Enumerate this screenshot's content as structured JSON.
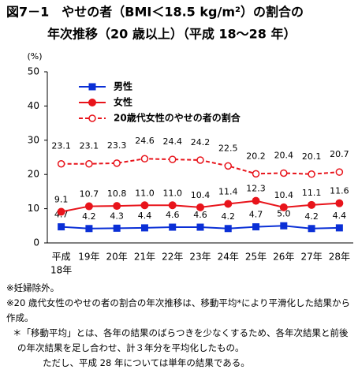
{
  "chart_data": {
    "type": "line",
    "title": "図7－1　やせの者（BMI＜18.5 kg/m²）の割合の",
    "subtitle": "年次推移（20 歳以上）（平成 18～28 年）",
    "y_label": "(%)",
    "x_era_label": "平成",
    "categories": [
      "18年",
      "19年",
      "20年",
      "21年",
      "22年",
      "23年",
      "24年",
      "25年",
      "26年",
      "27年",
      "28年"
    ],
    "ylim": [
      0,
      50
    ],
    "yticks": [
      0,
      10,
      20,
      30,
      40,
      50
    ],
    "grid": false,
    "legend": "top-left",
    "series": [
      {
        "name": "男性",
        "color": "#0a2fd6",
        "marker": "square",
        "dashed": false,
        "values": [
          4.7,
          4.2,
          4.3,
          4.4,
          4.6,
          4.6,
          4.2,
          4.7,
          5.0,
          4.2,
          4.4
        ],
        "value_labels": [
          "4.7",
          "4.2",
          "4.3",
          "4.4",
          "4.6",
          "4.6",
          "4.2",
          "4.7",
          "5.0",
          "4.2",
          "4.4"
        ]
      },
      {
        "name": "女性",
        "color": "#e8141b",
        "marker": "circle",
        "dashed": false,
        "values": [
          9.1,
          10.7,
          10.8,
          11.0,
          11.0,
          10.4,
          11.4,
          12.3,
          10.4,
          11.1,
          11.6
        ],
        "value_labels": [
          "9.1",
          "10.7",
          "10.8",
          "11.0",
          "11.0",
          "10.4",
          "11.4",
          "12.3",
          "10.4",
          "11.1",
          "11.6"
        ]
      },
      {
        "name": "20歳代女性のやせの者の割合",
        "color": "#e8141b",
        "marker": "hollow-circle",
        "dashed": true,
        "values": [
          23.1,
          23.1,
          23.3,
          24.6,
          24.4,
          24.2,
          22.5,
          20.2,
          20.4,
          20.1,
          20.7
        ],
        "value_labels": [
          "23.1",
          "23.1",
          "23.3",
          "24.6",
          "24.4",
          "24.2",
          "22.5",
          "20.2",
          "20.4",
          "20.1",
          "20.7"
        ]
      }
    ]
  },
  "notes": [
    "※妊婦除外。",
    "※20 歳代女性のやせの者の割合の年次推移は、移動平均*により平滑化した結果から作成。",
    "＊「移動平均」とは、各年の結果のばらつきを少なくするため、各年次結果と前後の年次結果を足し合わせ、計３年分を平均化したもの。",
    "ただし、平成 28 年については単年の結果である。"
  ]
}
